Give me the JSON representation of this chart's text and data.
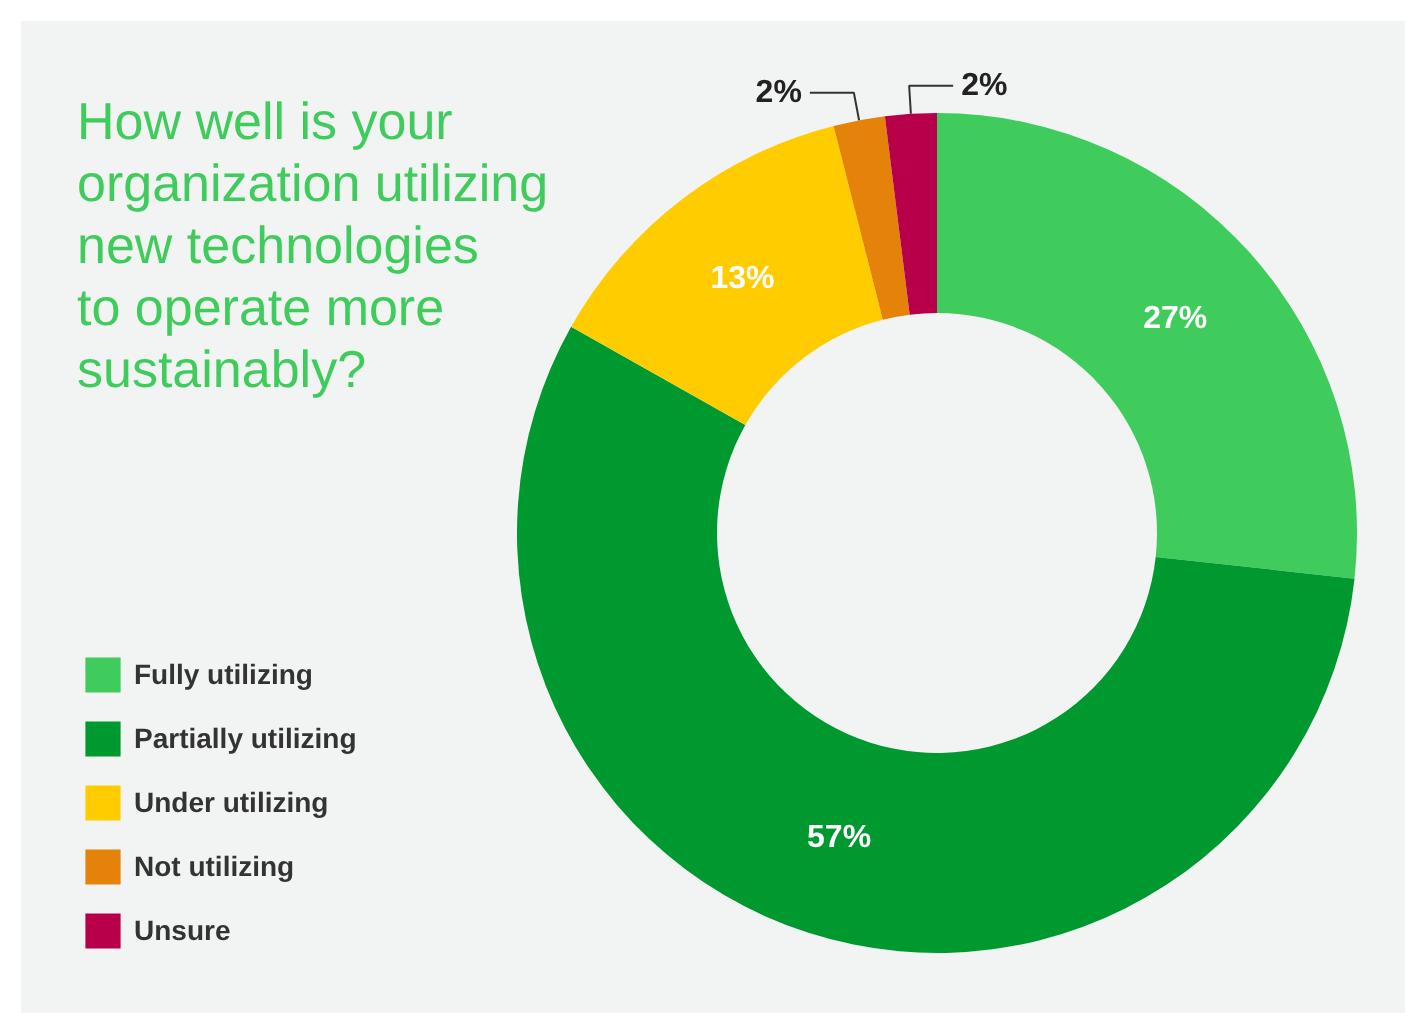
{
  "chart_data": {
    "type": "donut",
    "title": "How well is your\norganization utilizing\nnew technologies\nto operate more\nsustainably?",
    "categories": [
      "Fully utilizing",
      "Partially utilizing",
      "Under utilizing",
      "Not utilizing",
      "Unsure"
    ],
    "values": [
      27,
      57,
      13,
      2,
      2
    ],
    "colors": [
      "#40cc5c",
      "#00992f",
      "#ffcc00",
      "#e5820a",
      "#b8004a"
    ],
    "value_labels": [
      "27%",
      "57%",
      "13%",
      "2%",
      "2%"
    ],
    "legend": "bottom left"
  }
}
